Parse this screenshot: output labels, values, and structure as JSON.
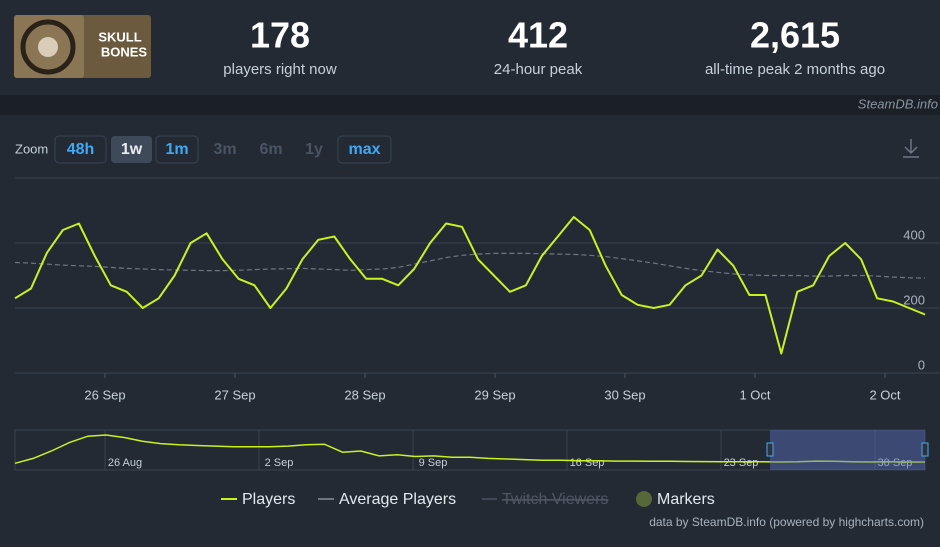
{
  "header": {
    "game_logo": [
      "SKULL",
      "BONES"
    ],
    "stats": [
      {
        "value": "178",
        "label": "players right now"
      },
      {
        "value": "412",
        "label": "24-hour peak"
      },
      {
        "value": "2,615",
        "label": "all-time peak 2 months ago"
      }
    ],
    "source": "SteamDB.info"
  },
  "zoom": {
    "label": "Zoom",
    "buttons": [
      {
        "text": "48h",
        "state": "enabled"
      },
      {
        "text": "1w",
        "state": "active"
      },
      {
        "text": "1m",
        "state": "enabled"
      },
      {
        "text": "3m",
        "state": "disabled"
      },
      {
        "text": "6m",
        "state": "disabled"
      },
      {
        "text": "1y",
        "state": "disabled"
      },
      {
        "text": "max",
        "state": "enabled"
      }
    ]
  },
  "chart_data": {
    "type": "line",
    "ylim": [
      0,
      600
    ],
    "yticks": [
      0,
      200,
      400
    ],
    "grid": true,
    "x_labels": [
      "26 Sep",
      "27 Sep",
      "28 Sep",
      "29 Sep",
      "30 Sep",
      "1 Oct",
      "2 Oct"
    ],
    "series": [
      {
        "name": "Players",
        "color": "#c9f21f",
        "values": [
          230,
          260,
          370,
          440,
          460,
          360,
          270,
          250,
          200,
          230,
          300,
          400,
          430,
          350,
          290,
          270,
          200,
          260,
          350,
          410,
          420,
          350,
          290,
          290,
          270,
          320,
          400,
          460,
          450,
          350,
          300,
          250,
          270,
          360,
          420,
          480,
          440,
          330,
          240,
          210,
          200,
          210,
          270,
          300,
          380,
          330,
          240,
          240,
          60,
          250,
          270,
          360,
          400,
          350,
          230,
          220,
          200,
          180
        ]
      },
      {
        "name": "Average Players",
        "color": "#6f7680",
        "dashed": true,
        "values": [
          340,
          338,
          335,
          332,
          330,
          328,
          325,
          322,
          320,
          318,
          317,
          316,
          315,
          315,
          316,
          318,
          320,
          321,
          322,
          320,
          318,
          316,
          318,
          320,
          325,
          335,
          345,
          355,
          362,
          366,
          368,
          368,
          368,
          367,
          366,
          365,
          362,
          358,
          352,
          345,
          338,
          330,
          322,
          315,
          310,
          305,
          302,
          300,
          300,
          300,
          298,
          298,
          300,
          300,
          298,
          295,
          293,
          292
        ]
      }
    ]
  },
  "legend_extra": [
    {
      "name": "Twitch Viewers",
      "hidden": true
    },
    {
      "name": "Markers",
      "color": "#56673a"
    }
  ],
  "navigator": {
    "x_labels": [
      "26 Aug",
      "2 Sep",
      "9 Sep",
      "16 Sep",
      "23 Sep",
      "30 Sep"
    ],
    "values": [
      300,
      700,
      1300,
      2000,
      2500,
      2600,
      2400,
      2100,
      1900,
      1800,
      1750,
      1700,
      1650,
      1650,
      1650,
      1700,
      1800,
      1850,
      1200,
      1300,
      900,
      1000,
      850,
      900,
      800,
      800,
      700,
      650,
      600,
      550,
      550,
      500,
      500,
      480,
      480,
      470,
      460,
      450,
      440,
      430,
      430,
      420,
      410,
      420,
      480,
      460,
      430,
      410,
      420,
      400,
      410
    ]
  },
  "credits": "data by SteamDB.info (powered by highcharts.com)"
}
